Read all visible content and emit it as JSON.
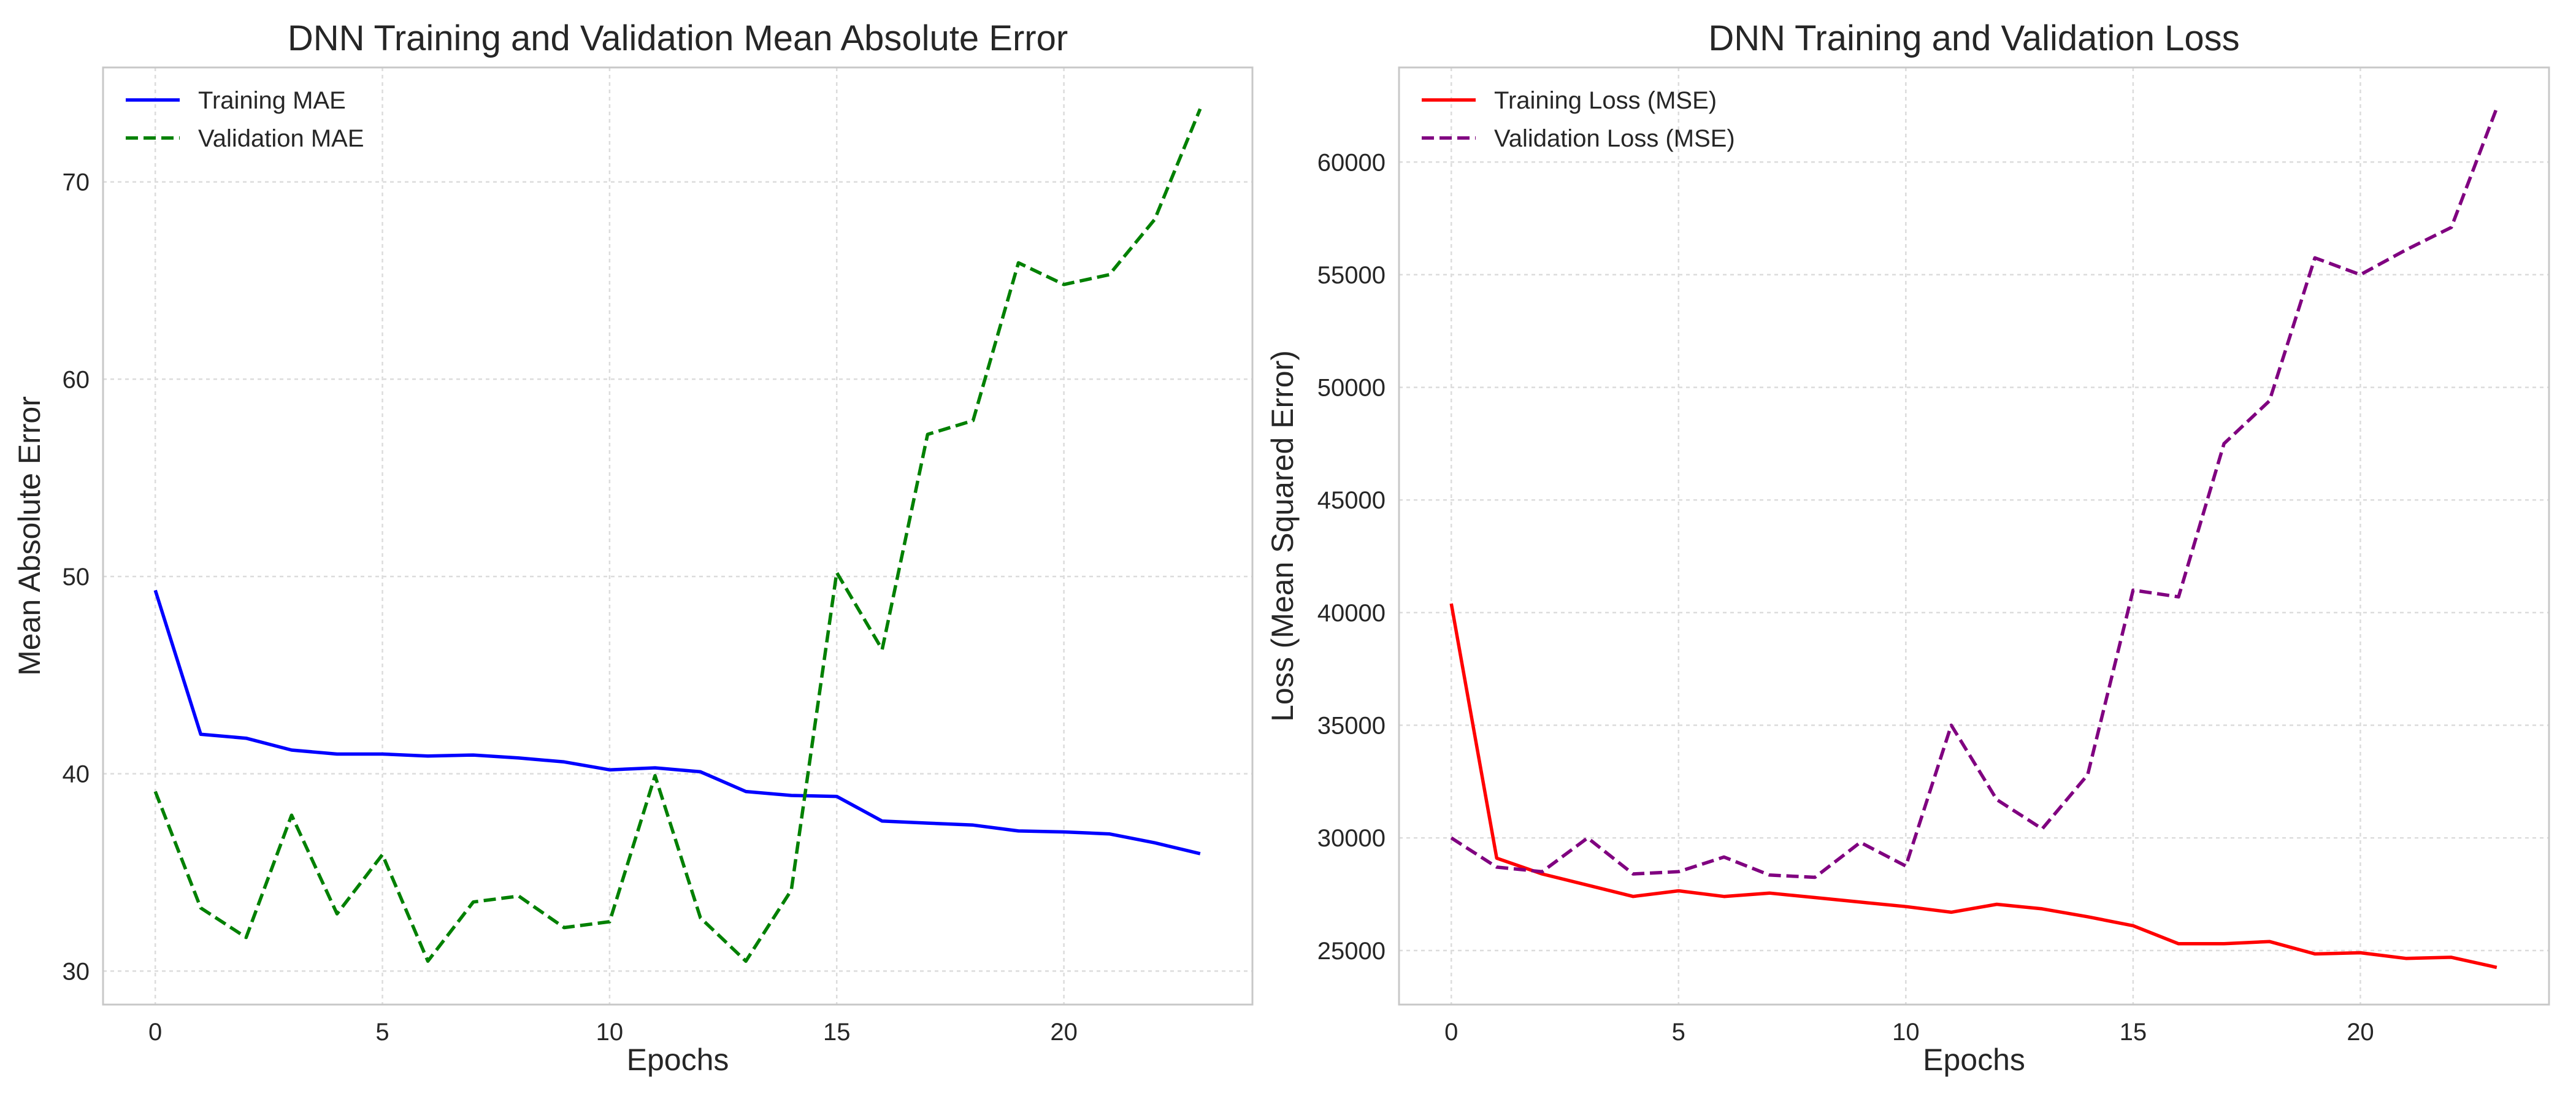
{
  "chart_data": [
    {
      "type": "line",
      "title": "DNN Training and Validation Mean Absolute Error",
      "xlabel": "Epochs",
      "ylabel": "Mean Absolute Error",
      "xlim": [
        -1.15,
        24.15
      ],
      "ylim": [
        28.3,
        75.8
      ],
      "xticks": [
        0,
        5,
        10,
        15,
        20
      ],
      "yticks": [
        30,
        40,
        50,
        60,
        70
      ],
      "grid": true,
      "legend_position": "top-left",
      "x": [
        0,
        1,
        2,
        3,
        4,
        5,
        6,
        7,
        8,
        9,
        10,
        11,
        12,
        13,
        14,
        15,
        16,
        17,
        18,
        19,
        20,
        21,
        22,
        23
      ],
      "series": [
        {
          "name": "Training MAE",
          "color": "#0000ff",
          "dash": "solid",
          "values": [
            49.3,
            42.0,
            41.8,
            41.2,
            41.0,
            41.0,
            40.9,
            40.95,
            40.8,
            40.6,
            40.2,
            40.3,
            40.1,
            39.1,
            38.9,
            38.85,
            37.6,
            37.5,
            37.4,
            37.1,
            37.05,
            36.95,
            36.5,
            35.95
          ]
        },
        {
          "name": "Validation MAE",
          "color": "#008000",
          "dash": "dashed",
          "values": [
            39.1,
            33.2,
            31.7,
            37.9,
            32.9,
            35.9,
            30.5,
            33.5,
            33.8,
            32.2,
            32.5,
            39.9,
            32.7,
            30.5,
            34.1,
            50.2,
            46.3,
            57.2,
            57.9,
            65.9,
            64.8,
            65.3,
            68.1,
            73.7
          ]
        }
      ]
    },
    {
      "type": "line",
      "title": "DNN Training and Validation Loss",
      "xlabel": "Epochs",
      "ylabel": "Loss (Mean Squared Error)",
      "xlim": [
        -1.15,
        24.15
      ],
      "ylim": [
        22600,
        64200
      ],
      "xticks": [
        0,
        5,
        10,
        15,
        20
      ],
      "yticks": [
        25000,
        30000,
        35000,
        40000,
        45000,
        50000,
        55000,
        60000
      ],
      "grid": true,
      "legend_position": "top-left",
      "x": [
        0,
        1,
        2,
        3,
        4,
        5,
        6,
        7,
        8,
        9,
        10,
        11,
        12,
        13,
        14,
        15,
        16,
        17,
        18,
        19,
        20,
        21,
        22,
        23
      ],
      "series": [
        {
          "name": "Training Loss (MSE)",
          "color": "#ff0000",
          "dash": "solid",
          "values": [
            40400,
            29100,
            28400,
            27900,
            27400,
            27650,
            27400,
            27550,
            27350,
            27150,
            26950,
            26700,
            27050,
            26850,
            26500,
            26100,
            25300,
            25300,
            25400,
            24850,
            24900,
            24650,
            24700,
            24250
          ]
        },
        {
          "name": "Validation Loss (MSE)",
          "color": "#800080",
          "dash": "dashed",
          "values": [
            30000,
            28700,
            28500,
            30000,
            28400,
            28500,
            29150,
            28350,
            28250,
            29800,
            28750,
            35000,
            31700,
            30400,
            32800,
            41000,
            40700,
            47500,
            49400,
            55750,
            55000,
            56100,
            57100,
            62400
          ]
        }
      ]
    }
  ]
}
